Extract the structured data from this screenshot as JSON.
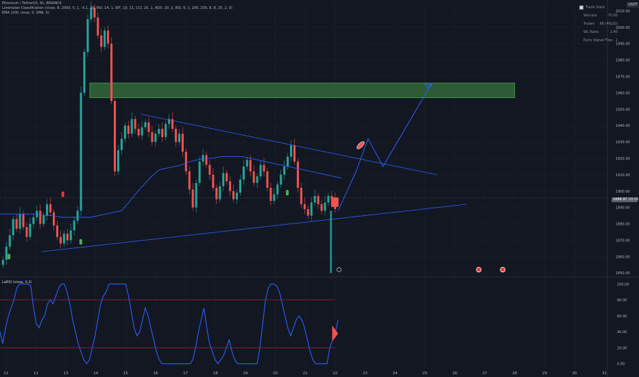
{
  "header": {
    "symbol_line": "Ethereum / TetherUS, 5h, BINANCE",
    "indicator_line": "Lorentzian Classification (close, 8, 2000, 5, 1, -0.1, 20, RSI, 14, 1, WT, 10, 11, CCI, 20, 1, ADX, 20, 2, RSI, 9, 1, 200, 200, 8, 8, 25, 2, 0)",
    "ema_line": "EMA (200, close, 0, SMA, 5)"
  },
  "currency": "USDT",
  "stats": {
    "title": "Trade Stats",
    "rows": [
      {
        "label": "Winrate",
        "value": "70.65"
      },
      {
        "label": "Trades",
        "value": "68 (48|20)"
      },
      {
        "label": "WL Ratio",
        "value": "2.40"
      },
      {
        "label": "Early Signal Flips",
        "value": "1"
      }
    ]
  },
  "price_tag": {
    "price": "1888.97",
    "countdown": "09:58"
  },
  "chart_data": [
    {
      "type": "candlestick",
      "x_ticks": [
        "11",
        "12",
        "13",
        "14",
        "15",
        "16",
        "17",
        "18",
        "19",
        "20",
        "21",
        "22",
        "23",
        "24",
        "25",
        "26",
        "27",
        "28",
        "29",
        "30",
        "31"
      ],
      "y_ticks": [
        "2010.00",
        "2000.00",
        "1990.00",
        "1980.00",
        "1970.00",
        "1960.00",
        "1950.00",
        "1940.00",
        "1930.00",
        "1920.00",
        "1910.00",
        "1900.00",
        "1890.00",
        "1880.00",
        "1870.00",
        "1860.00",
        "1850.00"
      ],
      "ylim": [
        1848,
        2015
      ],
      "xlim": [
        10.8,
        31.1
      ],
      "close": [
        1858,
        1866,
        1873,
        1883,
        1877,
        1886,
        1878,
        1872,
        1880,
        1884,
        1888,
        1880,
        1885,
        1892,
        1887,
        1879,
        1872,
        1868,
        1874,
        1870,
        1876,
        1882,
        1888,
        1960,
        1985,
        2005,
        2012,
        2006,
        1995,
        1988,
        1998,
        1990,
        1955,
        1912,
        1925,
        1932,
        1940,
        1935,
        1944,
        1938,
        1934,
        1939,
        1942,
        1936,
        1930,
        1935,
        1938,
        1933,
        1941,
        1944,
        1938,
        1930,
        1935,
        1924,
        1912,
        1901,
        1890,
        1905,
        1918,
        1922,
        1916,
        1910,
        1902,
        1895,
        1903,
        1911,
        1906,
        1900,
        1895,
        1899,
        1907,
        1915,
        1919,
        1912,
        1905,
        1909,
        1916,
        1912,
        1902,
        1894,
        1898,
        1904,
        1910,
        1915,
        1921,
        1928,
        1918,
        1902,
        1892,
        1889,
        1885,
        1893,
        1897,
        1892,
        1888,
        1893,
        1897,
        1895,
        1889
      ],
      "emas": [
        1886,
        1886,
        1886,
        1886,
        1886,
        1886,
        1885,
        1885,
        1884,
        1884,
        1884,
        1884,
        1884,
        1885,
        1886,
        1887,
        1888,
        1893,
        1899,
        1904,
        1909,
        1913,
        1914,
        1915,
        1916,
        1918,
        1919,
        1920,
        1920,
        1921,
        1921,
        1921,
        1921,
        1920,
        1919,
        1918,
        1917,
        1916,
        1915,
        1914,
        1913,
        1912,
        1911,
        1910,
        1909,
        1908
      ],
      "ema_label": "EMA 200",
      "supply_zone": {
        "low": 1957,
        "high": 1966
      },
      "projected_path": [
        [
          22.1,
          1888
        ],
        [
          22.7,
          1912
        ],
        [
          23.1,
          1932
        ],
        [
          23.6,
          1915
        ],
        [
          25.2,
          1965
        ]
      ],
      "triangle_upper": [
        [
          15.5,
          1947
        ],
        [
          25.4,
          1910
        ]
      ],
      "triangle_lower": [
        [
          12.2,
          1863
        ],
        [
          26.4,
          1892
        ]
      ]
    },
    {
      "type": "line",
      "title": "LaRSI (close, 0.2)",
      "y_ticks": [
        "100.00",
        "80.00",
        "60.00",
        "40.00",
        "20.00",
        "0.00"
      ],
      "ylim": [
        -8,
        108
      ],
      "upper_band": 80,
      "lower_band": 20,
      "values": [
        40,
        25,
        45,
        60,
        70,
        80,
        95,
        100,
        100,
        100,
        100,
        98,
        70,
        50,
        45,
        55,
        60,
        75,
        80,
        75,
        85,
        95,
        100,
        100,
        90,
        75,
        55,
        40,
        25,
        15,
        5,
        0,
        5,
        20,
        35,
        55,
        75,
        85,
        90,
        100,
        100,
        100,
        100,
        100,
        100,
        100,
        85,
        65,
        45,
        35,
        40,
        55,
        70,
        60,
        45,
        30,
        15,
        5,
        0,
        0,
        0,
        0,
        0,
        0,
        0,
        0,
        0,
        0,
        0,
        5,
        20,
        40,
        55,
        70,
        45,
        25,
        15,
        5,
        0,
        5,
        10,
        20,
        30,
        15,
        5,
        0,
        0,
        0,
        0,
        0,
        0,
        0,
        0,
        20,
        50,
        80,
        95,
        100,
        100,
        98,
        90,
        75,
        60,
        45,
        35,
        45,
        55,
        60,
        55,
        45,
        30,
        15,
        5,
        0,
        0,
        0,
        0,
        0,
        20,
        30,
        40,
        55
      ]
    }
  ]
}
